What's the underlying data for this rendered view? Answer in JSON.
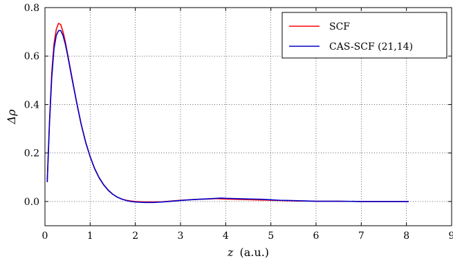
{
  "chart_data": {
    "type": "line",
    "xlabel_var": "z",
    "xlabel_unit": "(a.u.)",
    "ylabel": "Δρ",
    "xlim": [
      0,
      9
    ],
    "ylim": [
      -0.1,
      0.8
    ],
    "xticks": [
      0,
      1,
      2,
      3,
      4,
      5,
      6,
      7,
      8,
      9
    ],
    "yticks": [
      0.0,
      0.2,
      0.4,
      0.6,
      0.8
    ],
    "ytick_labels": [
      "0.0",
      "0.2",
      "0.4",
      "0.6",
      "0.8"
    ],
    "grid": true,
    "legend_position": "top-right",
    "series": [
      {
        "name": "SCF",
        "color": "#ff0000",
        "x": [
          0.05,
          0.1,
          0.15,
          0.2,
          0.25,
          0.3,
          0.35,
          0.4,
          0.45,
          0.5,
          0.6,
          0.7,
          0.8,
          0.9,
          1.0,
          1.1,
          1.2,
          1.3,
          1.4,
          1.5,
          1.6,
          1.7,
          1.8,
          1.9,
          2.0,
          2.2,
          2.4,
          2.6,
          2.8,
          3.0,
          3.2,
          3.4,
          3.6,
          3.8,
          3.9,
          4.0,
          4.2,
          4.4,
          4.6,
          4.8,
          5.0,
          5.2,
          5.4,
          5.6,
          5.8,
          6.0,
          6.5,
          7.0,
          7.5,
          8.05
        ],
        "y": [
          0.08,
          0.33,
          0.53,
          0.65,
          0.71,
          0.735,
          0.73,
          0.7,
          0.66,
          0.61,
          0.51,
          0.41,
          0.32,
          0.245,
          0.185,
          0.135,
          0.097,
          0.068,
          0.046,
          0.03,
          0.018,
          0.01,
          0.005,
          0.002,
          0.0,
          -0.002,
          -0.002,
          -0.001,
          0.002,
          0.005,
          0.007,
          0.009,
          0.01,
          0.012,
          0.011,
          0.01,
          0.009,
          0.008,
          0.007,
          0.006,
          0.005,
          0.004,
          0.003,
          0.002,
          0.002,
          0.001,
          0.001,
          0.0,
          0.0,
          0.0
        ]
      },
      {
        "name": "CAS-SCF (21,14)",
        "color": "#0000cc",
        "x": [
          0.05,
          0.1,
          0.15,
          0.2,
          0.25,
          0.3,
          0.35,
          0.4,
          0.45,
          0.5,
          0.6,
          0.7,
          0.8,
          0.9,
          1.0,
          1.1,
          1.2,
          1.3,
          1.4,
          1.5,
          1.6,
          1.7,
          1.8,
          1.9,
          2.0,
          2.2,
          2.4,
          2.6,
          2.8,
          3.0,
          3.2,
          3.4,
          3.6,
          3.8,
          3.9,
          4.0,
          4.2,
          4.4,
          4.6,
          4.8,
          5.0,
          5.2,
          5.4,
          5.6,
          5.8,
          6.0,
          6.5,
          7.0,
          7.5,
          8.05
        ],
        "y": [
          0.08,
          0.32,
          0.51,
          0.63,
          0.685,
          0.705,
          0.705,
          0.685,
          0.65,
          0.605,
          0.505,
          0.41,
          0.32,
          0.245,
          0.185,
          0.136,
          0.098,
          0.069,
          0.047,
          0.03,
          0.018,
          0.01,
          0.004,
          0.0,
          -0.002,
          -0.004,
          -0.004,
          -0.002,
          0.001,
          0.004,
          0.007,
          0.009,
          0.011,
          0.013,
          0.014,
          0.013,
          0.012,
          0.011,
          0.01,
          0.009,
          0.007,
          0.005,
          0.004,
          0.003,
          0.002,
          0.001,
          0.001,
          0.0,
          0.0,
          0.0
        ]
      }
    ]
  }
}
